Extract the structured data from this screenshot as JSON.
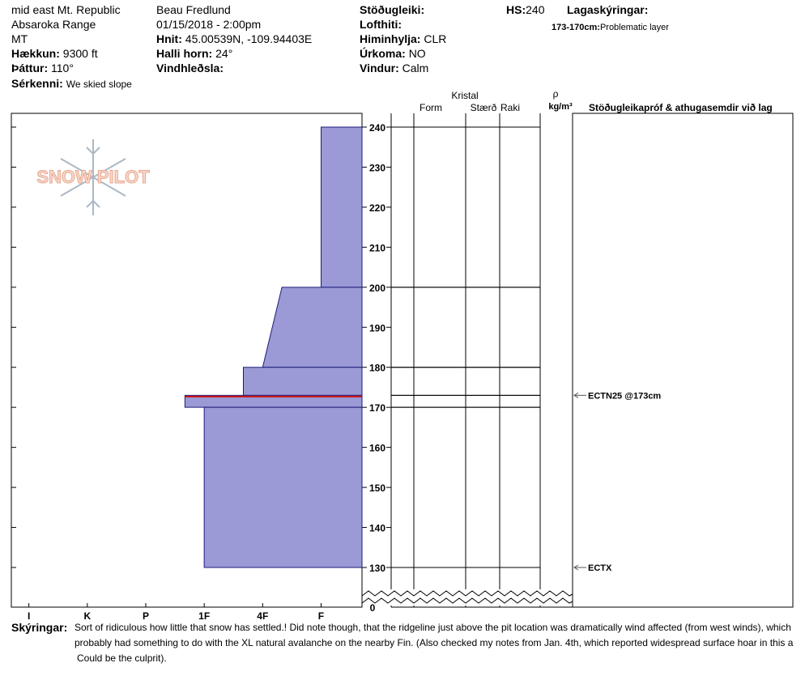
{
  "header": {
    "location": [
      "mid east Mt. Republic",
      "Absaroka Range",
      "MT"
    ],
    "observer": "Beau  Fredlund",
    "datetime": "01/15/2018 - 2:00pm",
    "elevation": {
      "label": "Hækkun:",
      "value": "9300 ft"
    },
    "aspect": {
      "label": "Þáttur:",
      "value": "110°"
    },
    "features": {
      "label": "Sérkenni:",
      "value": "We skied slope"
    },
    "coords": {
      "label": "Hnit:",
      "value": "45.00539N, -109.94403E"
    },
    "slope": {
      "label": "Halli horn:",
      "value": "24°"
    },
    "wind_loading": {
      "label": "Vindhleðsla:"
    },
    "stability": {
      "label": "Stöðugleiki:"
    },
    "air_temp": {
      "label": "Lofthiti:"
    },
    "sky": {
      "label": "Himinhylja:",
      "value": "CLR"
    },
    "precip": {
      "label": "Úrkoma:",
      "value": "NO"
    },
    "wind": {
      "label": "Vindur:",
      "value": "Calm"
    },
    "hs": {
      "label": "HS:",
      "value": 240
    },
    "layer_notes": {
      "label": "Lagaskýringar:",
      "items": [
        {
          "label": "173-170cm:",
          "text": "Problematic layer"
        }
      ]
    }
  },
  "logo": "SNOW PILOT",
  "table_header": {
    "crystal": "Kristal",
    "form": "Form",
    "size": "Stærð",
    "moisture": "Raki",
    "density_symbol": "ρ",
    "density_unit": "kg/m³",
    "comments": "Stöðugleikapróf & athugasemdir við lag"
  },
  "chart_data": {
    "type": "snow-profile",
    "xlim": [
      6.3,
      0.3
    ],
    "xticks": [
      {
        "value": 6,
        "label": "I"
      },
      {
        "value": 5,
        "label": "K"
      },
      {
        "value": 4,
        "label": "P"
      },
      {
        "value": 3,
        "label": "1F"
      },
      {
        "value": 2,
        "label": "4F"
      },
      {
        "value": 1,
        "label": "F"
      }
    ],
    "ylim": [
      130,
      240
    ],
    "yticks": [
      130,
      140,
      150,
      160,
      170,
      180,
      190,
      200,
      210,
      220,
      230,
      240
    ],
    "ground_tick": 0,
    "color": "#9b99d6",
    "problem_color": "#cc1111",
    "layers": [
      {
        "top": 240,
        "bottom": 200,
        "hardness_top": 1,
        "hardness_bottom": 1
      },
      {
        "top": 200,
        "bottom": 180,
        "hardness_top": 1.67,
        "hardness_bottom": 2
      },
      {
        "top": 180,
        "bottom": 173,
        "hardness_top": 2.33,
        "hardness_bottom": 2.33
      },
      {
        "top": 173,
        "bottom": 170,
        "hardness_top": 3.33,
        "hardness_bottom": 3.33,
        "problematic": true
      },
      {
        "top": 170,
        "bottom": 130,
        "hardness_top": 3,
        "hardness_bottom": 3
      }
    ],
    "tests": [
      {
        "label": "ECTN25 @173cm",
        "height": 173
      },
      {
        "label": "ECTX",
        "height": 130
      }
    ]
  },
  "footer": {
    "label": "Skýringar:",
    "lines": [
      "Sort of ridiculous how little that snow has settled.!  Did note though, that the ridgeline just above the pit location was dramatically wind affected (from west winds), which",
      "probably had something to do with the XL natural avalanche on the nearby Fin.  (Also checked my notes from Jan. 4th, which reported widespread surface hoar in this a",
      "Could be the culprit)."
    ]
  }
}
